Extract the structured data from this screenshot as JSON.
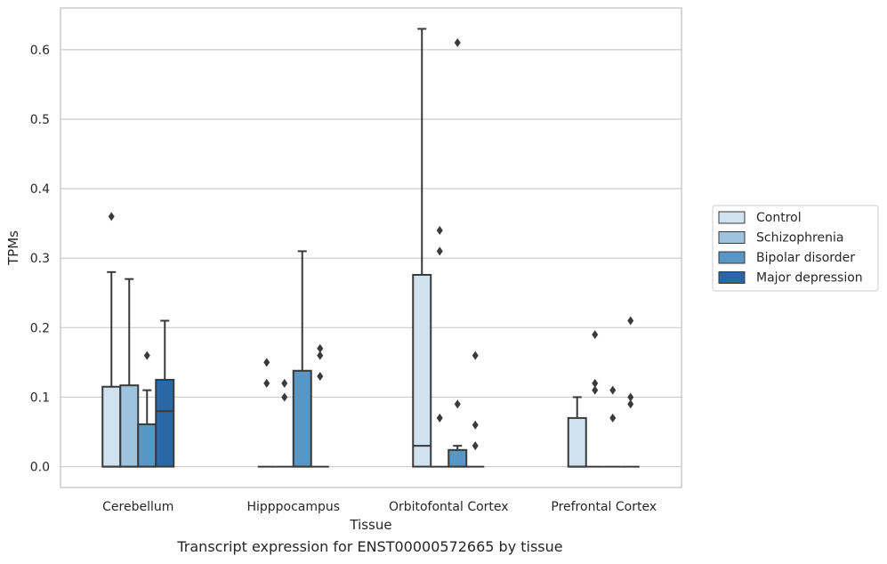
{
  "caption": "Transcript expression for ENST00000572665 by tissue",
  "colors": {
    "Control": "#d0e1f0",
    "Schizophrenia": "#9dc3de",
    "Bipolar disorder": "#5796c5",
    "Major depression": "#2a67a6",
    "stroke": "#3a3a3a",
    "grid": "#cccccc"
  },
  "chart_data": {
    "type": "box",
    "xlabel": "Tissue",
    "ylabel": "TPMs",
    "ylim": [
      -0.03,
      0.66
    ],
    "yticks": [
      0.0,
      0.1,
      0.2,
      0.3,
      0.4,
      0.5,
      0.6
    ],
    "ytick_labels": [
      "0.0",
      "0.1",
      "0.2",
      "0.3",
      "0.4",
      "0.5",
      "0.6"
    ],
    "grid": "horizontal",
    "legend_position": "right",
    "categories": [
      "Cerebellum",
      "Hipppocampus",
      "Orbitofontal Cortex",
      "Prefrontal Cortex"
    ],
    "series": [
      {
        "name": "Control",
        "boxes": [
          {
            "q1": 0.0,
            "median": 0.0,
            "q3": 0.115,
            "whisker_low": 0.0,
            "whisker_high": 0.28,
            "outliers": [
              0.36
            ]
          },
          {
            "q1": 0.0,
            "median": 0.0,
            "q3": 0.0,
            "whisker_low": 0.0,
            "whisker_high": 0.0,
            "outliers": [
              0.12,
              0.15
            ]
          },
          {
            "q1": 0.0,
            "median": 0.03,
            "q3": 0.276,
            "whisker_low": 0.0,
            "whisker_high": 0.63,
            "outliers": []
          },
          {
            "q1": 0.0,
            "median": 0.0,
            "q3": 0.07,
            "whisker_low": 0.0,
            "whisker_high": 0.1,
            "outliers": []
          }
        ]
      },
      {
        "name": "Schizophrenia",
        "boxes": [
          {
            "q1": 0.0,
            "median": 0.0,
            "q3": 0.117,
            "whisker_low": 0.0,
            "whisker_high": 0.27,
            "outliers": []
          },
          {
            "q1": 0.0,
            "median": 0.0,
            "q3": 0.0,
            "whisker_low": 0.0,
            "whisker_high": 0.0,
            "outliers": [
              0.1,
              0.12
            ]
          },
          {
            "q1": 0.0,
            "median": 0.0,
            "q3": 0.0,
            "whisker_low": 0.0,
            "whisker_high": 0.0,
            "outliers": [
              0.07,
              0.31,
              0.34
            ]
          },
          {
            "q1": 0.0,
            "median": 0.0,
            "q3": 0.0,
            "whisker_low": 0.0,
            "whisker_high": 0.0,
            "outliers": [
              0.11,
              0.12,
              0.19
            ]
          }
        ]
      },
      {
        "name": "Bipolar disorder",
        "boxes": [
          {
            "q1": 0.0,
            "median": 0.0,
            "q3": 0.061,
            "whisker_low": 0.0,
            "whisker_high": 0.11,
            "outliers": [
              0.16
            ]
          },
          {
            "q1": 0.0,
            "median": 0.0,
            "q3": 0.138,
            "whisker_low": 0.0,
            "whisker_high": 0.31,
            "outliers": []
          },
          {
            "q1": 0.0,
            "median": 0.0,
            "q3": 0.024,
            "whisker_low": 0.0,
            "whisker_high": 0.03,
            "outliers": [
              0.09,
              0.61
            ]
          },
          {
            "q1": 0.0,
            "median": 0.0,
            "q3": 0.0,
            "whisker_low": 0.0,
            "whisker_high": 0.0,
            "outliers": [
              0.07,
              0.11
            ]
          }
        ]
      },
      {
        "name": "Major depression",
        "boxes": [
          {
            "q1": 0.0,
            "median": 0.08,
            "q3": 0.125,
            "whisker_low": 0.0,
            "whisker_high": 0.21,
            "outliers": []
          },
          {
            "q1": 0.0,
            "median": 0.0,
            "q3": 0.0,
            "whisker_low": 0.0,
            "whisker_high": 0.0,
            "outliers": [
              0.13,
              0.16,
              0.17
            ]
          },
          {
            "q1": 0.0,
            "median": 0.0,
            "q3": 0.0,
            "whisker_low": 0.0,
            "whisker_high": 0.0,
            "outliers": [
              0.03,
              0.06,
              0.16
            ]
          },
          {
            "q1": 0.0,
            "median": 0.0,
            "q3": 0.0,
            "whisker_low": 0.0,
            "whisker_high": 0.0,
            "outliers": [
              0.09,
              0.1,
              0.21
            ]
          }
        ]
      }
    ]
  }
}
